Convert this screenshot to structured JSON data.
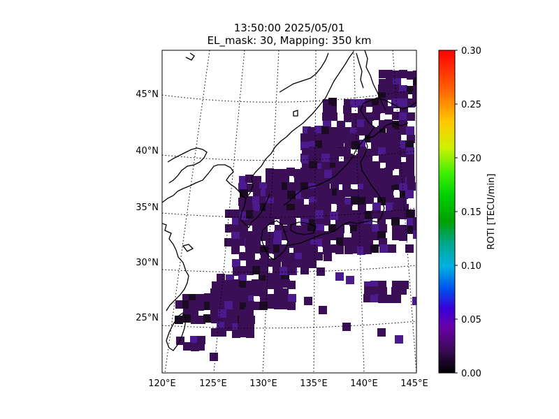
{
  "title": {
    "line1": "13:50:00 2025/05/01",
    "line2": "EL_mask: 30, Mapping: 350 km"
  },
  "map": {
    "lon_range": [
      120,
      145
    ],
    "lat_range": [
      20,
      49
    ],
    "lon_ticks": [
      "120°E",
      "125°E",
      "130°E",
      "135°E",
      "140°E",
      "145°E"
    ],
    "lat_ticks": [
      "25°N",
      "30°N",
      "35°N",
      "40°N",
      "45°N"
    ],
    "gridlines": "dotted",
    "projection": "conic"
  },
  "colorbar": {
    "label": "ROTI [TECU/min]",
    "min": 0.0,
    "max": 0.3,
    "ticks": [
      "0.00",
      "0.05",
      "0.10",
      "0.15",
      "0.20",
      "0.25",
      "0.30"
    ],
    "colormap": "nipy_spectral",
    "colors": [
      "#000000",
      "#7f009f",
      "#0000dd",
      "#0099dd",
      "#00aa88",
      "#00cc00",
      "#ccff00",
      "#ffbb00",
      "#ff0000"
    ]
  },
  "data_color": "#3a0f55",
  "data_color_alt": "#4b1a8c",
  "data_color_dark": "#1a0a22"
}
